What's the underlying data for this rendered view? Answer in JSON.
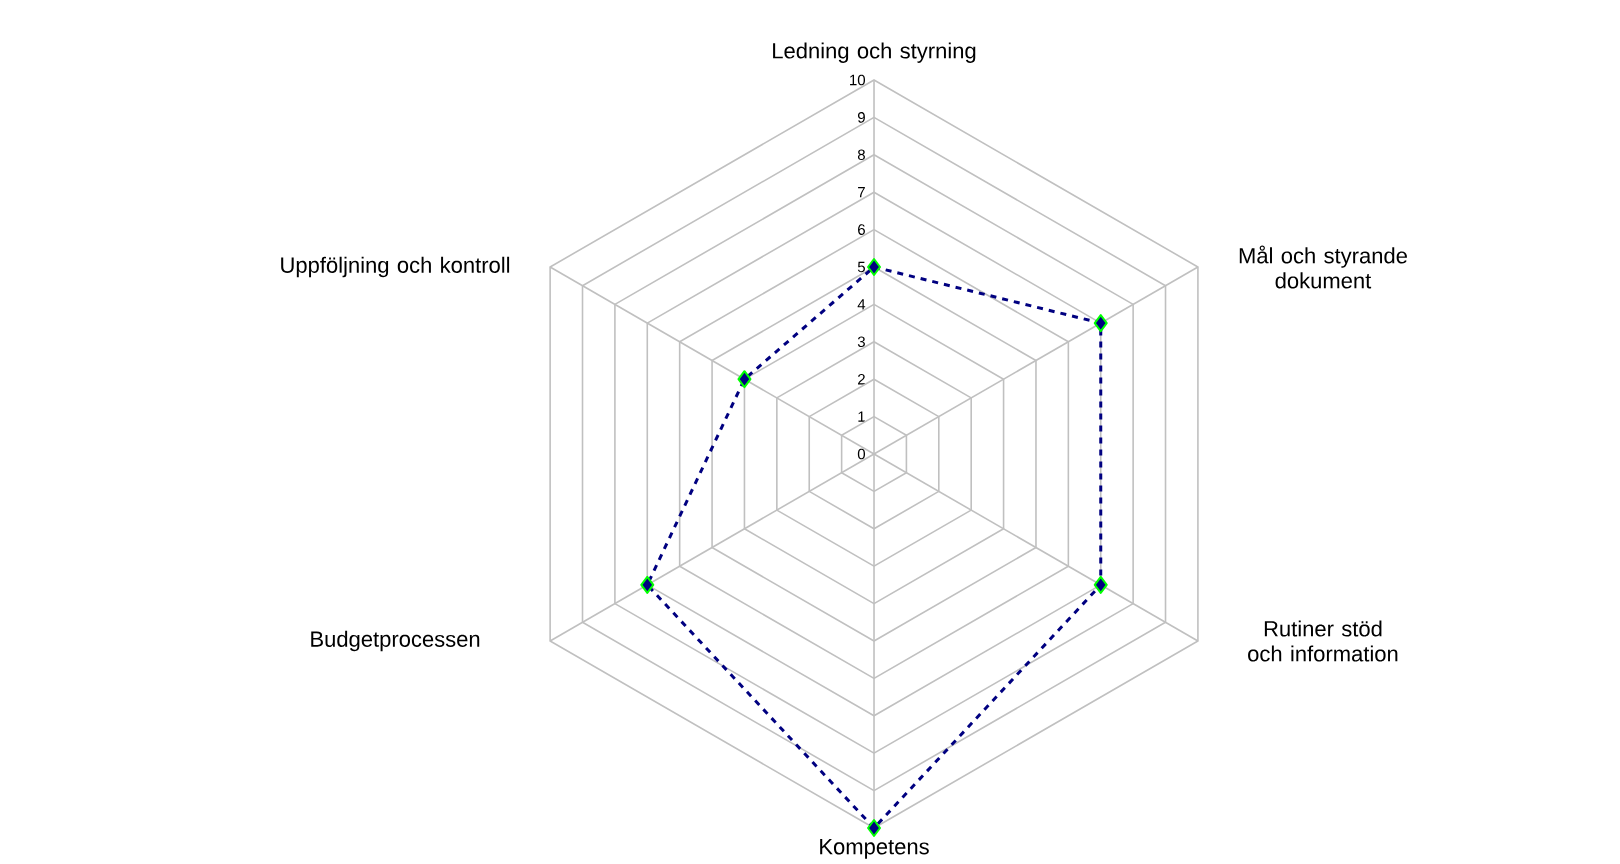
{
  "chart_data": {
    "type": "radar",
    "categories": [
      "Ledning och styrning",
      "Mål och styrande dokument",
      "Rutiner stöd och information",
      "Kompetens",
      "Budgetprocessen",
      "Uppföljning och kontroll"
    ],
    "series": [
      {
        "color": "#000080",
        "values": [
          5,
          7,
          7,
          10,
          7,
          4
        ]
      }
    ],
    "ylim": [
      0,
      10
    ],
    "yticks": [
      {
        "value": 0,
        "label": "0"
      },
      {
        "value": 1,
        "label": "1"
      },
      {
        "value": 2,
        "label": "2"
      },
      {
        "value": 3,
        "label": "3"
      },
      {
        "value": 4,
        "label": "4"
      },
      {
        "value": 5,
        "label": "5"
      },
      {
        "value": 6,
        "label": "6"
      },
      {
        "value": 7,
        "label": "7"
      },
      {
        "value": 8,
        "label": "8"
      },
      {
        "value": 9,
        "label": "9"
      },
      {
        "value": 10,
        "label": "10"
      }
    ],
    "grid": true,
    "marker": "diamond",
    "line_style": "dashed"
  }
}
